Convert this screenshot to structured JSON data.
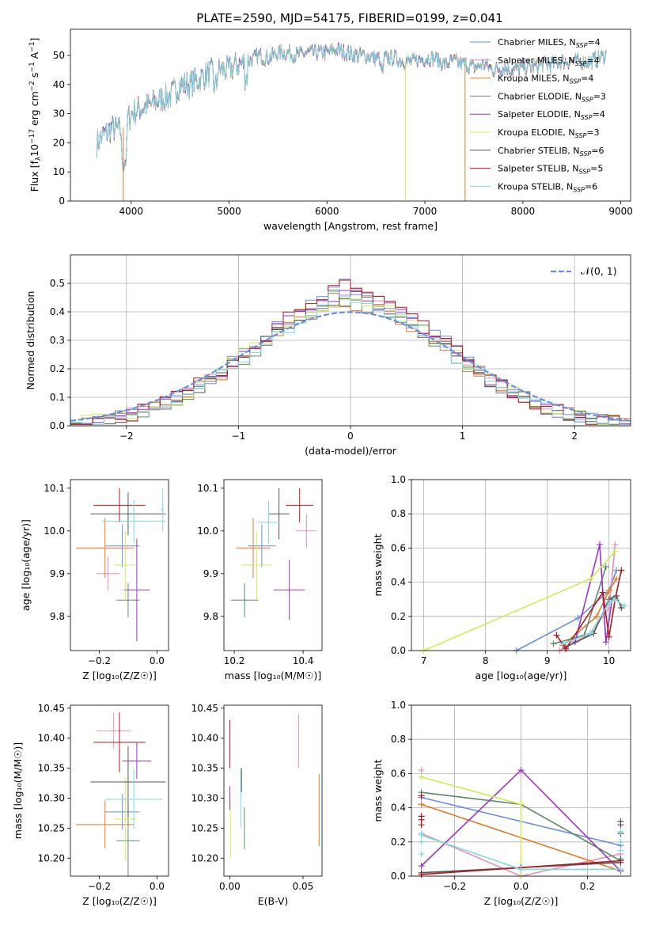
{
  "title": "PLATE=2590, MJD=54175, FIBERID=0199, z=0.041",
  "colors": {
    "chabrier_miles": "#6a8fdc",
    "salpeter_miles": "#e58fbf",
    "kroupa_miles": "#e07a28",
    "chabrier_elodie": "#5a8a6a",
    "salpeter_elodie": "#9b35c4",
    "kroupa_elodie": "#d4ea58",
    "chabrier_stelib": "#555555",
    "salpeter_stelib": "#b0181e",
    "kroupa_stelib": "#7dd8dc",
    "gauss": "#6a8fdc"
  },
  "chart_data": [
    {
      "id": "spectrum",
      "type": "line",
      "title": "PLATE=2590, MJD=54175, FIBERID=0199, z=0.041",
      "xlabel": "wavelength [Angstrom, rest frame]",
      "ylabel_parts": [
        "Flux [f",
        "λ",
        "10",
        "−17",
        " erg cm",
        "−2",
        " s",
        "−1",
        " A",
        "−1",
        "]"
      ],
      "xlim": [
        3380,
        9100
      ],
      "ylim": [
        0,
        59
      ],
      "xticks": [
        4000,
        5000,
        6000,
        7000,
        8000,
        9000
      ],
      "yticks": [
        0,
        10,
        20,
        30,
        40,
        50
      ],
      "continuum": {
        "x": [
          3650,
          3700,
          3800,
          3900,
          4000,
          4100,
          4200,
          4300,
          4400,
          4500,
          4600,
          4700,
          4800,
          4900,
          5000,
          5100,
          5200,
          5300,
          5400,
          5500,
          5600,
          5700,
          5800,
          5900,
          6000,
          6100,
          6200,
          6300,
          6400,
          6500,
          6600,
          6700,
          6800,
          6900,
          7000,
          7100,
          7200,
          7300,
          7400,
          7500,
          7600,
          7700,
          7800,
          7900,
          8000,
          8100,
          8200,
          8300,
          8400,
          8500,
          8600,
          8700,
          8850
        ],
        "y": [
          20,
          22,
          25,
          24,
          30,
          32,
          33,
          35,
          36,
          40,
          40,
          42,
          44,
          45,
          45,
          47,
          48,
          50,
          49,
          51,
          51,
          50,
          51,
          51,
          51,
          52,
          51,
          50,
          50,
          49,
          49,
          49,
          48,
          48,
          49,
          49,
          47,
          48,
          47,
          46,
          47,
          45,
          46,
          45,
          46,
          46,
          47,
          47,
          48,
          48,
          48,
          48,
          50
        ]
      },
      "legend": [
        {
          "name": "Chabrier MILES",
          "sub": "SSP",
          "n": "4",
          "color_key": "chabrier_miles"
        },
        {
          "name": "Salpeter MILES",
          "sub": "SSP",
          "n": "4",
          "color_key": "salpeter_miles"
        },
        {
          "name": "Kroupa MILES",
          "sub": "SSP",
          "n": "4",
          "color_key": "kroupa_miles"
        },
        {
          "name": "Chabrier ELODIE",
          "sub": "SSP",
          "n": "3",
          "color_key": "chabrier_elodie"
        },
        {
          "name": "Salpeter ELODIE",
          "sub": "SSP",
          "n": "4",
          "color_key": "salpeter_elodie"
        },
        {
          "name": "Kroupa ELODIE",
          "sub": "SSP",
          "n": "3",
          "color_key": "kroupa_elodie"
        },
        {
          "name": "Chabrier STELIB",
          "sub": "SSP",
          "n": "6",
          "color_key": "chabrier_stelib"
        },
        {
          "name": "Salpeter STELIB",
          "sub": "SSP",
          "n": "5",
          "color_key": "salpeter_stelib"
        },
        {
          "name": "Kroupa STELIB",
          "sub": "SSP",
          "n": "6",
          "color_key": "kroupa_stelib"
        }
      ],
      "drops": [
        {
          "x": 3920,
          "color_key": "kroupa_miles"
        },
        {
          "x": 6800,
          "color_key": "kroupa_elodie"
        },
        {
          "x": 7410,
          "color_key": "kroupa_miles"
        }
      ]
    },
    {
      "id": "residuals",
      "type": "histogram",
      "xlabel": "(data-model)/error",
      "ylabel": "Normed distribution",
      "xlim": [
        -2.5,
        2.5
      ],
      "ylim": [
        0,
        0.6
      ],
      "xticks": [
        -2,
        -1,
        0,
        1,
        2
      ],
      "yticks": [
        0.0,
        0.1,
        0.2,
        0.3,
        0.4,
        0.5
      ],
      "grid": true,
      "legend_label": "𝒩(0, 1)",
      "legend_loc": "upper right",
      "bin_width": 0.1
    },
    {
      "id": "age_vs_Z",
      "type": "errorbar",
      "xlabel": "Z [log₁₀(Z/Z☉)]",
      "ylabel": "age  [log₁₀(age/yr)]",
      "xlim": [
        -0.3,
        0.04
      ],
      "ylim": [
        9.72,
        10.12
      ],
      "xticks": [
        -0.2,
        0.0
      ],
      "yticks": [
        9.8,
        9.9,
        10.0,
        10.1
      ],
      "points": [
        {
          "c": "chabrier_miles",
          "x": -0.12,
          "y": 9.965,
          "xe": 0.06,
          "ye": 0.05
        },
        {
          "c": "salpeter_miles",
          "x": -0.17,
          "y": 9.9,
          "xe": 0.04,
          "ye": 0.04
        },
        {
          "c": "kroupa_miles",
          "x": -0.18,
          "y": 9.96,
          "xe": 0.1,
          "ye": 0.07
        },
        {
          "c": "chabrier_elodie",
          "x": -0.1,
          "y": 9.838,
          "xe": 0.04,
          "ye": 0.04
        },
        {
          "c": "salpeter_elodie",
          "x": -0.07,
          "y": 9.862,
          "xe": 0.045,
          "ye": 0.12
        },
        {
          "c": "kroupa_elodie",
          "x": -0.11,
          "y": 9.92,
          "xe": 0.04,
          "ye": 0.08
        },
        {
          "c": "chabrier_stelib",
          "x": -0.1,
          "y": 10.04,
          "xe": 0.13,
          "ye": 0.05
        },
        {
          "c": "salpeter_stelib",
          "x": -0.13,
          "y": 10.06,
          "xe": 0.09,
          "ye": 0.04
        },
        {
          "c": "kroupa_stelib",
          "x": -0.08,
          "y": 10.023,
          "xe": 0.11,
          "ye": 0.05
        },
        {
          "c": "kroupa_stelib",
          "x": 0.02,
          "y": 10.05,
          "xe": 0.005,
          "ye": 0.05
        }
      ]
    },
    {
      "id": "age_vs_mass",
      "type": "errorbar",
      "xlabel": "mass [log₁₀(M/M☉)]",
      "ylabel": "",
      "xlim": [
        10.17,
        10.455
      ],
      "ylim": [
        9.72,
        10.12
      ],
      "xticks": [
        10.2,
        10.4
      ],
      "yticks": [
        9.8,
        9.9,
        10.0,
        10.1
      ],
      "points": [
        {
          "c": "chabrier_miles",
          "x": 10.28,
          "y": 9.965,
          "xe": 0.04,
          "ye": 0.05
        },
        {
          "c": "salpeter_miles",
          "x": 10.41,
          "y": 10.0,
          "xe": 0.03,
          "ye": 0.04
        },
        {
          "c": "kroupa_miles",
          "x": 10.255,
          "y": 9.96,
          "xe": 0.05,
          "ye": 0.07
        },
        {
          "c": "chabrier_elodie",
          "x": 10.23,
          "y": 9.838,
          "xe": 0.04,
          "ye": 0.04
        },
        {
          "c": "salpeter_elodie",
          "x": 10.36,
          "y": 9.862,
          "xe": 0.045,
          "ye": 0.07
        },
        {
          "c": "kroupa_elodie",
          "x": 10.265,
          "y": 9.92,
          "xe": 0.045,
          "ye": 0.08
        },
        {
          "c": "chabrier_stelib",
          "x": 10.33,
          "y": 10.04,
          "xe": 0.03,
          "ye": 0.06
        },
        {
          "c": "salpeter_stelib",
          "x": 10.39,
          "y": 10.06,
          "xe": 0.04,
          "ye": 0.04
        },
        {
          "c": "kroupa_stelib",
          "x": 10.3,
          "y": 10.02,
          "xe": 0.03,
          "ye": 0.05
        }
      ]
    },
    {
      "id": "weight_vs_age",
      "type": "line",
      "xlabel": "age  [log₁₀(age/yr)]",
      "ylabel": "mass weight",
      "xlim": [
        6.8,
        10.35
      ],
      "ylim": [
        0,
        1.0
      ],
      "xticks": [
        7,
        8,
        9,
        10
      ],
      "yticks": [
        0.0,
        0.2,
        0.4,
        0.6,
        0.8,
        1.0
      ],
      "grid": true,
      "series": [
        {
          "c": "chabrier_miles",
          "x": [
            8.5,
            9.5,
            10.0,
            10.12
          ],
          "y": [
            0.0,
            0.19,
            0.35,
            0.47
          ]
        },
        {
          "c": "salpeter_miles",
          "x": [
            9.2,
            9.7,
            10.0,
            10.1
          ],
          "y": [
            0.0,
            0.1,
            0.25,
            0.62
          ]
        },
        {
          "c": "kroupa_miles",
          "x": [
            9.25,
            9.8,
            10.0,
            10.12
          ],
          "y": [
            0.03,
            0.2,
            0.35,
            0.42
          ]
        },
        {
          "c": "chabrier_elodie",
          "x": [
            9.1,
            9.6,
            9.95
          ],
          "y": [
            0.04,
            0.09,
            0.49
          ]
        },
        {
          "c": "salpeter_elodie",
          "x": [
            9.45,
            9.85,
            9.95,
            10.05
          ],
          "y": [
            0.05,
            0.62,
            0.05,
            0.3
          ]
        },
        {
          "c": "kroupa_elodie",
          "x": [
            7.0,
            9.7,
            10.1
          ],
          "y": [
            0.0,
            0.42,
            0.58
          ]
        },
        {
          "c": "chabrier_stelib",
          "x": [
            9.3,
            9.75,
            10.0,
            10.12,
            10.2
          ],
          "y": [
            0.02,
            0.1,
            0.3,
            0.32,
            0.25
          ]
        },
        {
          "c": "salpeter_stelib",
          "x": [
            9.15,
            9.3,
            9.9,
            10.0,
            10.1,
            10.2
          ],
          "y": [
            0.09,
            0.01,
            0.34,
            0.08,
            0.3,
            0.47
          ]
        },
        {
          "c": "kroupa_stelib",
          "x": [
            9.25,
            9.7,
            10.0,
            10.1,
            10.25
          ],
          "y": [
            0.04,
            0.1,
            0.28,
            0.3,
            0.26
          ]
        }
      ]
    },
    {
      "id": "mass_vs_Z",
      "type": "errorbar",
      "xlabel": "Z [log₁₀(Z/Z☉)]",
      "ylabel": "mass [log₁₀(M/M☉)]",
      "xlim": [
        -0.3,
        0.04
      ],
      "ylim": [
        10.17,
        10.455
      ],
      "xticks": [
        -0.2,
        0.0
      ],
      "yticks": [
        10.2,
        10.25,
        10.3,
        10.35,
        10.4,
        10.45
      ],
      "points": [
        {
          "c": "chabrier_miles",
          "x": -0.12,
          "y": 10.277,
          "xe": 0.06,
          "ye": 0.03
        },
        {
          "c": "salpeter_miles",
          "x": -0.15,
          "y": 10.412,
          "xe": 0.06,
          "ye": 0.03
        },
        {
          "c": "kroupa_miles",
          "x": -0.18,
          "y": 10.256,
          "xe": 0.1,
          "ye": 0.04
        },
        {
          "c": "chabrier_elodie",
          "x": -0.1,
          "y": 10.229,
          "xe": 0.04,
          "ye": 0.06
        },
        {
          "c": "salpeter_elodie",
          "x": -0.07,
          "y": 10.362,
          "xe": 0.05,
          "ye": 0.03
        },
        {
          "c": "kroupa_elodie",
          "x": -0.11,
          "y": 10.265,
          "xe": 0.04,
          "ye": 0.07
        },
        {
          "c": "chabrier_stelib",
          "x": -0.1,
          "y": 10.327,
          "xe": 0.13,
          "ye": 0.06
        },
        {
          "c": "salpeter_stelib",
          "x": -0.13,
          "y": 10.393,
          "xe": 0.09,
          "ye": 0.05
        },
        {
          "c": "kroupa_stelib",
          "x": -0.08,
          "y": 10.298,
          "xe": 0.1,
          "ye": 0.05
        }
      ]
    },
    {
      "id": "mass_vs_ebv",
      "type": "errorbar",
      "xlabel": "E(B-V)",
      "ylabel": "",
      "xlim": [
        -0.004,
        0.063
      ],
      "ylim": [
        10.17,
        10.455
      ],
      "xticks": [
        0.0,
        0.05
      ],
      "yticks": [
        10.2,
        10.25,
        10.3,
        10.35,
        10.4,
        10.45
      ],
      "points": [
        {
          "c": "salpeter_stelib",
          "x": 0.0,
          "y": 10.39,
          "xe": 0,
          "ye": 0.04
        },
        {
          "c": "chabrier_elodie",
          "x": 0.01,
          "y": 10.25,
          "xe": 0,
          "ye": 0.035
        },
        {
          "c": "kroupa_stelib",
          "x": 0.0075,
          "y": 10.3,
          "xe": 0,
          "ye": 0.05
        },
        {
          "c": "salpeter_miles",
          "x": 0.047,
          "y": 10.395,
          "xe": 0,
          "ye": 0.045
        },
        {
          "c": "kroupa_miles",
          "x": 0.061,
          "y": 10.28,
          "xe": 0,
          "ye": 0.06
        },
        {
          "c": "kroupa_elodie",
          "x": 0.0005,
          "y": 10.25,
          "xe": 0,
          "ye": 0.05
        },
        {
          "c": "salpeter_elodie",
          "x": 0.0,
          "y": 10.3,
          "xe": 0,
          "ye": 0.02
        },
        {
          "c": "chabrier_stelib",
          "x": 0.008,
          "y": 10.33,
          "xe": 0,
          "ye": 0.02
        }
      ]
    },
    {
      "id": "weight_vs_Z",
      "type": "line",
      "xlabel": "Z [log₁₀(Z/Z☉)]",
      "ylabel": "mass weight",
      "xlim": [
        -0.33,
        0.33
      ],
      "ylim": [
        0,
        1.0
      ],
      "xticks": [
        -0.2,
        0.0,
        0.2
      ],
      "yticks": [
        0.0,
        0.2,
        0.4,
        0.6,
        0.8,
        1.0
      ],
      "grid": true,
      "series": [
        {
          "c": "chabrier_miles",
          "x": [
            -0.3,
            0.3
          ],
          "y": [
            0.46,
            0.18
          ]
        },
        {
          "c": "salpeter_miles",
          "x": [
            -0.3,
            0.0,
            0.3
          ],
          "y": [
            0.25,
            0.0,
            0.13
          ]
        },
        {
          "c": "kroupa_miles",
          "x": [
            -0.3,
            0.3
          ],
          "y": [
            0.42,
            0.03
          ]
        },
        {
          "c": "chabrier_elodie",
          "x": [
            -0.3,
            0.0,
            0.3
          ],
          "y": [
            0.49,
            0.42,
            0.09
          ]
        },
        {
          "c": "salpeter_elodie",
          "x": [
            -0.3,
            0.0,
            0.3
          ],
          "y": [
            0.06,
            0.62,
            0.03
          ]
        },
        {
          "c": "kroupa_elodie",
          "x": [
            -0.3,
            0.0,
            0.0
          ],
          "y": [
            0.58,
            0.42,
            0.0
          ]
        },
        {
          "c": "chabrier_stelib",
          "x": [
            -0.3,
            0.0,
            0.3
          ],
          "y": [
            0.02,
            0.05,
            0.08
          ]
        },
        {
          "c": "salpeter_stelib",
          "x": [
            -0.3,
            0.3
          ],
          "y": [
            0.01,
            0.09
          ]
        },
        {
          "c": "kroupa_stelib",
          "x": [
            -0.3,
            0.0,
            0.3
          ],
          "y": [
            0.24,
            0.04,
            0.04
          ]
        }
      ],
      "markers": [
        {
          "c": "salpeter_miles",
          "x": -0.3,
          "ys": [
            0.62
          ]
        },
        {
          "c": "salpeter_stelib",
          "x": -0.3,
          "ys": [
            0.3,
            0.33,
            0.35,
            0.47
          ]
        },
        {
          "c": "kroupa_stelib",
          "x": -0.3,
          "ys": [
            0.13,
            0.2,
            0.25
          ]
        },
        {
          "c": "chabrier_stelib",
          "x": 0.3,
          "ys": [
            0.32,
            0.3,
            0.25,
            0.1
          ]
        },
        {
          "c": "kroupa_stelib",
          "x": 0.3,
          "ys": [
            0.26,
            0.2,
            0.15
          ]
        }
      ]
    }
  ]
}
